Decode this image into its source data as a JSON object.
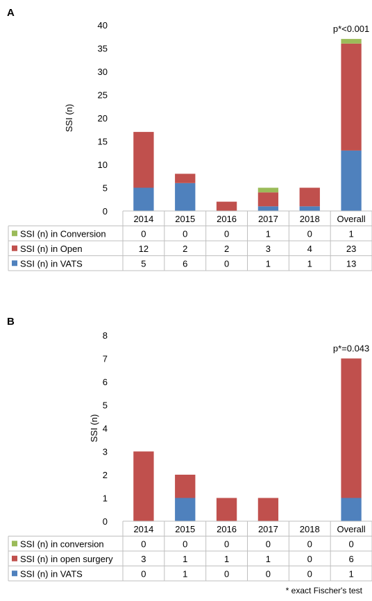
{
  "chart_data": [
    {
      "type": "bar",
      "stacked": true,
      "panel_label": "A",
      "ylabel": "SSI (n)",
      "ylim": [
        0,
        40
      ],
      "yticks": [
        0,
        5,
        10,
        15,
        20,
        25,
        30,
        35,
        40
      ],
      "categories": [
        "2014",
        "2015",
        "2016",
        "2017",
        "2018",
        "Overall"
      ],
      "annotation": "p*<0.001",
      "data_table": true,
      "series": [
        {
          "name": "SSI (n) in VATS",
          "color": "#4f81bd",
          "values": [
            5,
            6,
            0,
            1,
            1,
            13
          ]
        },
        {
          "name": "SSI (n) in Open",
          "color": "#c0504d",
          "values": [
            12,
            2,
            2,
            3,
            4,
            23
          ]
        },
        {
          "name": "SSI (n) in Conversion",
          "color": "#9bbb59",
          "values": [
            0,
            0,
            0,
            1,
            0,
            1
          ]
        }
      ],
      "table_order": [
        2,
        1,
        0
      ]
    },
    {
      "type": "bar",
      "stacked": true,
      "panel_label": "B",
      "ylabel": "SSI (n)",
      "ylim": [
        0,
        8
      ],
      "yticks": [
        0,
        1,
        2,
        3,
        4,
        5,
        6,
        7,
        8
      ],
      "categories": [
        "2014",
        "2015",
        "2016",
        "2017",
        "2018",
        "Overall"
      ],
      "annotation": "p*=0.043",
      "data_table": true,
      "series": [
        {
          "name": "SSI (n) in VATS",
          "color": "#4f81bd",
          "values": [
            0,
            1,
            0,
            0,
            0,
            1
          ]
        },
        {
          "name": "SSI (n) in open surgery",
          "color": "#c0504d",
          "values": [
            3,
            1,
            1,
            1,
            0,
            6
          ]
        },
        {
          "name": "SSI (n) in conversion",
          "color": "#9bbb59",
          "values": [
            0,
            0,
            0,
            0,
            0,
            0
          ]
        }
      ],
      "table_order": [
        2,
        1,
        0
      ]
    }
  ],
  "footnote": "* exact Fischer's test"
}
